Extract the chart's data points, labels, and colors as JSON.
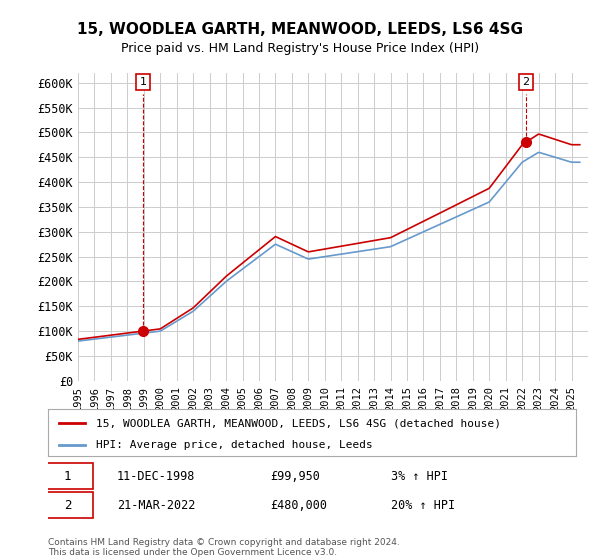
{
  "title": "15, WOODLEA GARTH, MEANWOOD, LEEDS, LS6 4SG",
  "subtitle": "Price paid vs. HM Land Registry's House Price Index (HPI)",
  "ylabel_ticks": [
    "£0",
    "£50K",
    "£100K",
    "£150K",
    "£200K",
    "£250K",
    "£300K",
    "£350K",
    "£400K",
    "£450K",
    "£500K",
    "£550K",
    "£600K"
  ],
  "ylim": [
    0,
    620000
  ],
  "ytick_values": [
    0,
    50000,
    100000,
    150000,
    200000,
    250000,
    300000,
    350000,
    400000,
    450000,
    500000,
    550000,
    600000
  ],
  "legend_property": "15, WOODLEA GARTH, MEANWOOD, LEEDS, LS6 4SG (detached house)",
  "legend_hpi": "HPI: Average price, detached house, Leeds",
  "property_color": "#cc0000",
  "hpi_color": "#6699cc",
  "sale1_label": "1",
  "sale1_date": "11-DEC-1998",
  "sale1_price": "£99,950",
  "sale1_hpi": "3% ↑ HPI",
  "sale2_label": "2",
  "sale2_date": "21-MAR-2022",
  "sale2_price": "£480,000",
  "sale2_hpi": "20% ↑ HPI",
  "footer": "Contains HM Land Registry data © Crown copyright and database right 2024.\nThis data is licensed under the Open Government Licence v3.0.",
  "background_color": "#ffffff",
  "grid_color": "#cccccc",
  "sale1_x": 1998.95,
  "sale1_y": 99950,
  "sale2_x": 2022.22,
  "sale2_y": 480000,
  "xmin": 1995,
  "xmax": 2026
}
